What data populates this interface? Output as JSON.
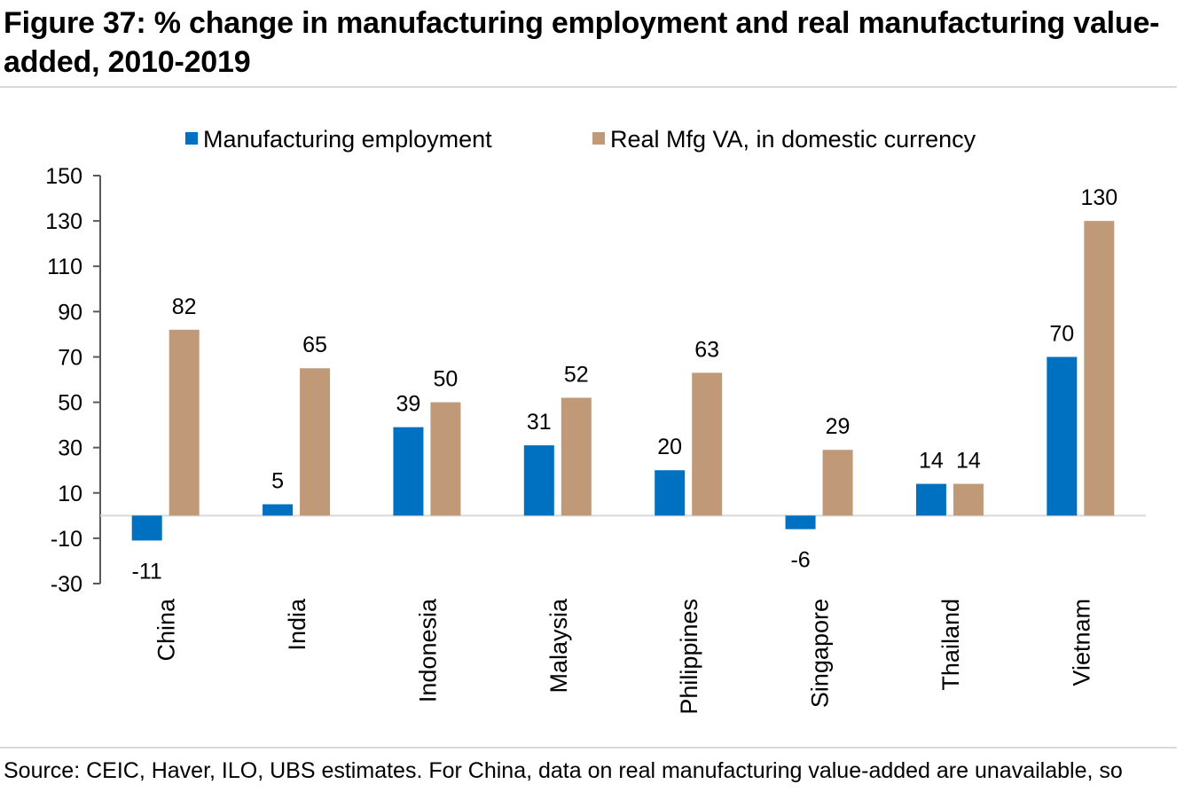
{
  "header": {
    "title": "Figure 37: % change in manufacturing employment and real manufacturing value-added, 2010-2019"
  },
  "footer": {
    "source": "Source: CEIC, Haver, ILO, UBS estimates. For China, data on real manufacturing value-added are unavailable, so"
  },
  "chart_data": {
    "type": "bar",
    "title": "",
    "xlabel": "",
    "ylabel": "",
    "categories": [
      "China",
      "India",
      "Indonesia",
      "Malaysia",
      "Philippines",
      "Singapore",
      "Thailand",
      "Vietnam"
    ],
    "series": [
      {
        "name": "Manufacturing employment",
        "color": "#0070c0",
        "values": [
          -11,
          5,
          39,
          31,
          20,
          -6,
          14,
          70
        ],
        "labels": [
          "-11",
          "5",
          "39",
          "31",
          "20",
          "-6",
          "14",
          "70"
        ]
      },
      {
        "name": "Real Mfg VA, in domestic currency",
        "color": "#c09a78",
        "values": [
          82,
          65,
          50,
          52,
          63,
          29,
          14,
          130
        ],
        "labels": [
          "82",
          "65",
          "50",
          "52",
          "63",
          "29",
          "14",
          "130"
        ]
      }
    ],
    "ylim": [
      -30,
      150
    ],
    "yticks": [
      -30,
      -10,
      10,
      30,
      50,
      70,
      90,
      110,
      130,
      150
    ],
    "grid": false,
    "legend": "top-center",
    "axis_color": "#595959",
    "zero_line_color": "#d9d9d9"
  }
}
